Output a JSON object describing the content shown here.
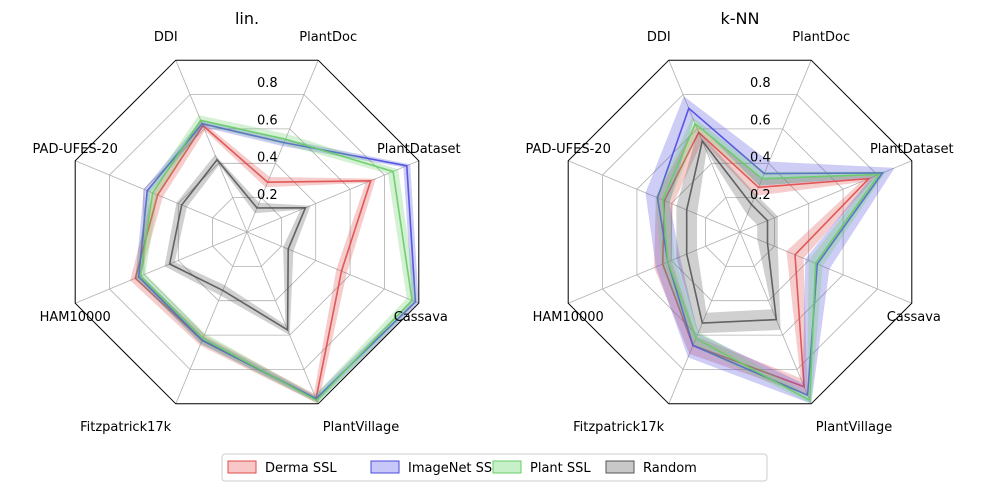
{
  "chart_data": [
    {
      "type": "radar",
      "title": "lin.",
      "axes": [
        "DDI",
        "PlantDoc",
        "PlantDataset",
        "Cassava",
        "PlantVillage",
        "Fitzpatrick17k",
        "HAM10000",
        "PAD-UFES-20"
      ],
      "rlim": [
        0,
        1
      ],
      "rticks": [
        "0.2",
        "0.4",
        "0.6",
        "0.8"
      ],
      "rtick_values": [
        0.2,
        0.4,
        0.6,
        0.8
      ],
      "grid": true,
      "series": [
        {
          "name": "Derma SSL",
          "color": "#e04a4a",
          "values": [
            0.62,
            0.29,
            0.72,
            0.55,
            0.97,
            0.63,
            0.65,
            0.52
          ],
          "spread": 0.03
        },
        {
          "name": "ImageNet SSL",
          "color": "#4a4ae0",
          "values": [
            0.63,
            0.52,
            0.93,
            0.98,
            0.97,
            0.63,
            0.63,
            0.58
          ],
          "spread": 0.02
        },
        {
          "name": "Plant SSL",
          "color": "#66cc66",
          "values": [
            0.65,
            0.54,
            0.85,
            0.96,
            0.98,
            0.62,
            0.62,
            0.55
          ],
          "spread": 0.03
        },
        {
          "name": "Random",
          "color": "#555555",
          "values": [
            0.42,
            0.14,
            0.34,
            0.24,
            0.57,
            0.34,
            0.45,
            0.38
          ],
          "spread": 0.03
        }
      ]
    },
    {
      "type": "radar",
      "title": "k-NN",
      "axes": [
        "DDI",
        "PlantDoc",
        "PlantDataset",
        "Cassava",
        "PlantVillage",
        "Fitzpatrick17k",
        "HAM10000",
        "PAD-UFES-20"
      ],
      "rlim": [
        0,
        1
      ],
      "rticks": [
        "0.2",
        "0.4",
        "0.6",
        "0.8"
      ],
      "rtick_values": [
        0.2,
        0.4,
        0.6,
        0.8
      ],
      "grid": true,
      "series": [
        {
          "name": "Derma SSL",
          "color": "#e04a4a",
          "values": [
            0.58,
            0.26,
            0.75,
            0.32,
            0.9,
            0.66,
            0.45,
            0.44
          ],
          "spread": 0.05
        },
        {
          "name": "ImageNet SSL",
          "color": "#4a4ae0",
          "values": [
            0.72,
            0.34,
            0.83,
            0.45,
            0.95,
            0.66,
            0.42,
            0.48
          ],
          "spread": 0.07
        },
        {
          "name": "Plant SSL",
          "color": "#66cc66",
          "values": [
            0.63,
            0.31,
            0.81,
            0.44,
            0.98,
            0.62,
            0.42,
            0.45
          ],
          "spread": 0.04
        },
        {
          "name": "Random",
          "color": "#555555",
          "values": [
            0.53,
            0.16,
            0.16,
            0.16,
            0.51,
            0.53,
            0.31,
            0.31
          ],
          "spread": 0.06
        }
      ]
    }
  ],
  "legend": {
    "placement": "bottom-center",
    "entries": [
      {
        "label": "Derma SSL",
        "fill": "#f8c8c8",
        "stroke": "#e04a4a"
      },
      {
        "label": "ImageNet SSL",
        "fill": "#c8c8f8",
        "stroke": "#4a4ae0"
      },
      {
        "label": "Plant SSL",
        "fill": "#c8f0c8",
        "stroke": "#66cc66"
      },
      {
        "label": "Random",
        "fill": "#c8c8c8",
        "stroke": "#555555"
      }
    ]
  }
}
